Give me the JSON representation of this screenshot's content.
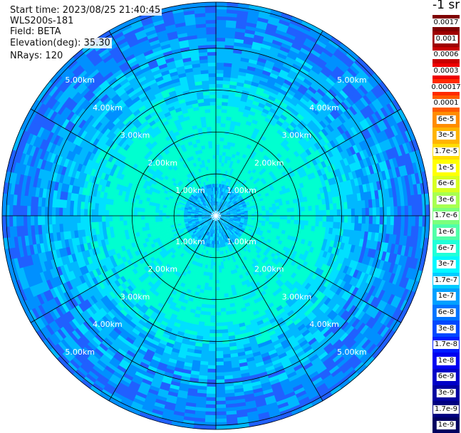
{
  "info": {
    "start_time": "Start time: 2023/08/25 21:40:45",
    "instrument": "WLS200s-181",
    "field": "Field: BETA",
    "elevation": "Elevation(deg): 35.30",
    "nrays": "NRays: 120"
  },
  "units": "-1 sr",
  "colorbar": {
    "labels": [
      "0.0017",
      "0.001",
      "0.0006",
      "0.0003",
      "0.00017",
      "0.0001",
      "6e-5",
      "3e-5",
      "1.7e-5",
      "1e-5",
      "6e-6",
      "3e-6",
      "1.7e-6",
      "1e-6",
      "6e-7",
      "3e-7",
      "1.7e-7",
      "1e-7",
      "6e-8",
      "3e-8",
      "1.7e-8",
      "1e-8",
      "6e-9",
      "3e-9",
      "1.7e-9",
      "1e-9"
    ],
    "colors": [
      "#7f0000",
      "#9e0000",
      "#c80000",
      "#ee0000",
      "#ff2a00",
      "#ff5a00",
      "#ff8c00",
      "#ffb400",
      "#ffdc00",
      "#ffff00",
      "#d8ff20",
      "#a8ff50",
      "#7cff7c",
      "#50ffa8",
      "#20ffd8",
      "#00f8ff",
      "#00ccff",
      "#00a0ff",
      "#0074ff",
      "#0048ff",
      "#001cff",
      "#0000f0",
      "#0000c8",
      "#0000a0",
      "#000080",
      "#000060"
    ]
  },
  "chart_data": {
    "type": "heatmap",
    "projection": "polar",
    "rings_km": [
      1,
      2,
      3,
      4,
      5
    ],
    "ring_labels": [
      "1.00km",
      "2.00km",
      "3.00km",
      "4.00km",
      "5.00km"
    ],
    "spokes_deg": [
      0,
      30,
      60,
      90,
      120,
      150,
      180,
      210,
      240,
      270,
      300,
      330
    ],
    "max_range_km": 5.1,
    "value_range": [
      1e-09,
      0.0017
    ],
    "colormap": "jet",
    "scale": "log",
    "dominant_colors": [
      "#00ffd0",
      "#00e0ff",
      "#00b8ff",
      "#0090ff",
      "#2060ff"
    ]
  }
}
